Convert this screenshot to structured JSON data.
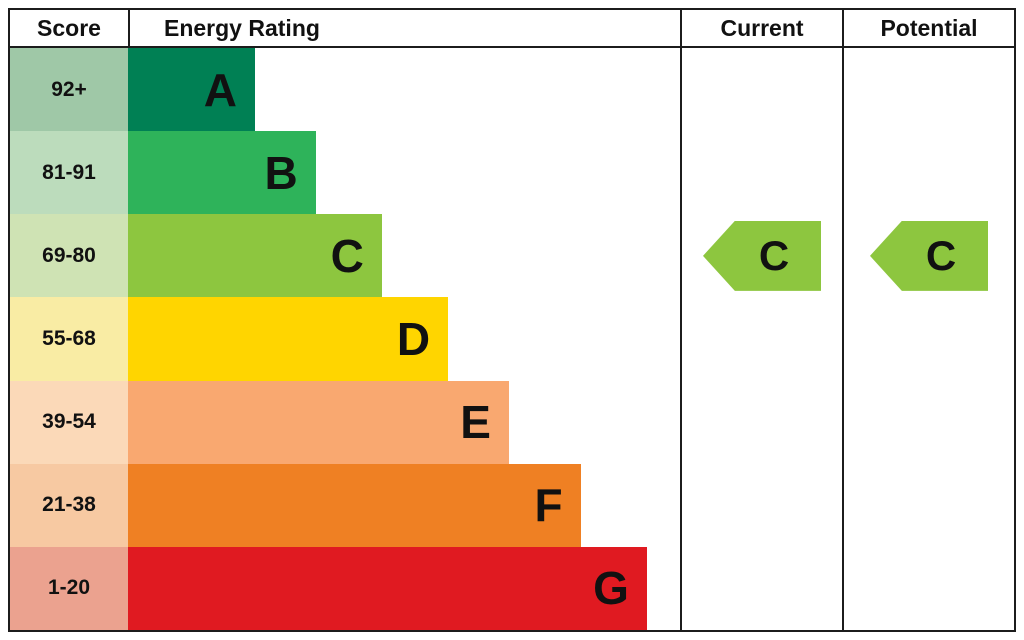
{
  "header": {
    "score": "Score",
    "energy_rating": "Energy Rating",
    "current": "Current",
    "potential": "Potential"
  },
  "bands": [
    {
      "score": "92+",
      "letter": "A",
      "bar_color": "#008054",
      "score_bg": "#9fc8a7",
      "width_pct": 23
    },
    {
      "score": "81-91",
      "letter": "B",
      "bar_color": "#2eb35a",
      "score_bg": "#bcdcbc",
      "width_pct": 34
    },
    {
      "score": "69-80",
      "letter": "C",
      "bar_color": "#8dc63f",
      "score_bg": "#cfe3b4",
      "width_pct": 46
    },
    {
      "score": "55-68",
      "letter": "D",
      "bar_color": "#ffd500",
      "score_bg": "#f9eca4",
      "width_pct": 58
    },
    {
      "score": "39-54",
      "letter": "E",
      "bar_color": "#f9a870",
      "score_bg": "#fbd9b8",
      "width_pct": 69
    },
    {
      "score": "21-38",
      "letter": "F",
      "bar_color": "#ef8023",
      "score_bg": "#f7c9a2",
      "width_pct": 82
    },
    {
      "score": "1-20",
      "letter": "G",
      "bar_color": "#e01a21",
      "score_bg": "#eba28f",
      "width_pct": 94
    }
  ],
  "current": {
    "letter": "C",
    "band": "69-80",
    "band_index": 2,
    "arrow_color": "#8dc63f"
  },
  "potential": {
    "letter": "C",
    "band": "69-80",
    "band_index": 2,
    "arrow_color": "#8dc63f"
  },
  "chart_data": {
    "type": "bar",
    "orientation": "horizontal",
    "title": "Energy Rating",
    "categories": [
      "92+",
      "81-91",
      "69-80",
      "55-68",
      "39-54",
      "21-38",
      "1-20"
    ],
    "letters": [
      "A",
      "B",
      "C",
      "D",
      "E",
      "F",
      "G"
    ],
    "bar_lengths_pct": [
      23,
      34,
      46,
      58,
      69,
      82,
      94
    ],
    "bar_colors": [
      "#008054",
      "#2eb35a",
      "#8dc63f",
      "#ffd500",
      "#f9a870",
      "#ef8023",
      "#e01a21"
    ],
    "current_rating": "C",
    "current_band": "69-80",
    "potential_rating": "C",
    "potential_band": "69-80",
    "legend_position": "none"
  }
}
